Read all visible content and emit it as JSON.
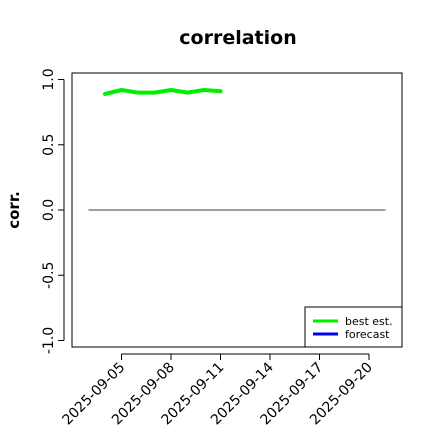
{
  "chart_data": {
    "type": "line",
    "title": "correlation",
    "ylabel": "corr.",
    "xlabel": "",
    "ylim": [
      -1.05,
      1.05
    ],
    "xlim": [
      "2025-09-02",
      "2025-09-22"
    ],
    "yticks": [
      -1.0,
      -0.5,
      0.0,
      0.5,
      1.0
    ],
    "ytick_labels": [
      "-1.0",
      "-0.5",
      "0.0",
      "0.5",
      "1.0"
    ],
    "xticks": [
      "2025-09-05",
      "2025-09-08",
      "2025-09-11",
      "2025-09-14",
      "2025-09-17",
      "2025-09-20"
    ],
    "xtick_labels": [
      "2025-09-05",
      "2025-09-08",
      "2025-09-11",
      "2025-09-14",
      "2025-09-17",
      "2025-09-20"
    ],
    "highlighted_tick": "2025-09-11",
    "highlight_color": "#228b22",
    "reference_line": {
      "y": 0.0,
      "from": "2025-09-03",
      "to": "2025-09-21",
      "color": "#666666"
    },
    "series": [
      {
        "name": "best est.",
        "color": "#00ee00",
        "x": [
          "2025-09-04",
          "2025-09-05",
          "2025-09-06",
          "2025-09-07",
          "2025-09-08",
          "2025-09-09",
          "2025-09-10",
          "2025-09-11"
        ],
        "values": [
          0.89,
          0.92,
          0.9,
          0.9,
          0.92,
          0.9,
          0.92,
          0.91
        ]
      },
      {
        "name": "forecast",
        "color": "#0000ee",
        "x": [],
        "values": []
      }
    ],
    "legend": "bottom-right",
    "grid": false
  }
}
